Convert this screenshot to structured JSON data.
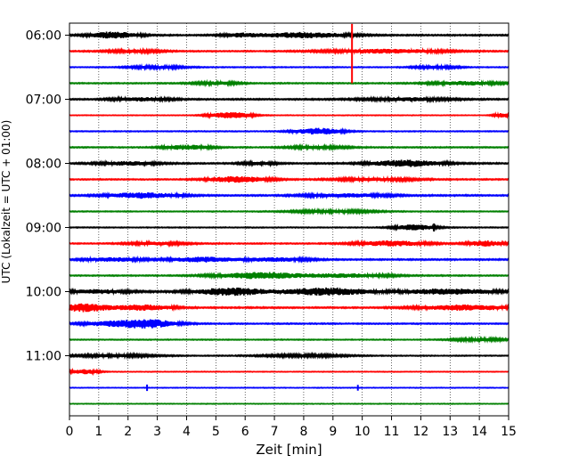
{
  "chart_data": {
    "type": "line",
    "title": "",
    "xlabel": "Zeit  [min]",
    "ylabel": "UTC (Lokalzeit = UTC + 01:00)",
    "xlim": [
      0,
      15
    ],
    "xticks": [
      0,
      1,
      2,
      3,
      4,
      5,
      6,
      7,
      8,
      9,
      10,
      11,
      12,
      13,
      14,
      15
    ],
    "ylim_traces": [
      -0.75,
      23.75
    ],
    "grid": "vertical dotted",
    "yticks": [
      {
        "label": "06:00",
        "trace": 0
      },
      {
        "label": "07:00",
        "trace": 4
      },
      {
        "label": "08:00",
        "trace": 8
      },
      {
        "label": "09:00",
        "trace": 12
      },
      {
        "label": "10:00",
        "trace": 16
      },
      {
        "label": "11:00",
        "trace": 20
      }
    ],
    "color_cycle": [
      "#000000",
      "#ff0000",
      "#0000ff",
      "#008000"
    ],
    "traces": [
      {
        "start": "06:00",
        "color": "#000000",
        "level": 0.6,
        "bursts": [
          [
            1.5,
            0.8,
            3.5
          ],
          [
            8.0,
            1.5,
            3.0
          ],
          [
            5.8,
            0.6,
            1.8
          ]
        ]
      },
      {
        "start": "06:15",
        "color": "#ff0000",
        "level": 0.5,
        "bursts": [
          [
            10.8,
            2.0,
            2.2
          ],
          [
            2.2,
            1.0,
            1.5
          ]
        ]
      },
      {
        "start": "06:30",
        "color": "#0000ff",
        "level": 0.4,
        "bursts": [
          [
            3.0,
            1.0,
            1.5
          ],
          [
            12.5,
            0.8,
            1.5
          ]
        ]
      },
      {
        "start": "06:45",
        "color": "#008000",
        "level": 0.5,
        "bursts": [
          [
            13.5,
            1.2,
            2.0
          ],
          [
            5.0,
            0.8,
            1.5
          ]
        ]
      },
      {
        "start": "07:00",
        "color": "#000000",
        "level": 0.6,
        "bursts": [
          [
            2.5,
            1.0,
            1.8
          ],
          [
            11.5,
            1.5,
            1.8
          ]
        ]
      },
      {
        "start": "07:15",
        "color": "#ff0000",
        "level": 0.3,
        "bursts": [
          [
            5.5,
            0.7,
            3.5
          ],
          [
            14.8,
            0.3,
            2.5
          ]
        ]
      },
      {
        "start": "07:30",
        "color": "#0000ff",
        "level": 0.4,
        "bursts": [
          [
            8.5,
            0.8,
            3.5
          ]
        ]
      },
      {
        "start": "07:45",
        "color": "#008000",
        "level": 0.5,
        "bursts": [
          [
            4.0,
            0.8,
            2.5
          ],
          [
            8.5,
            1.0,
            1.5
          ]
        ]
      },
      {
        "start": "08:00",
        "color": "#000000",
        "level": 0.6,
        "bursts": [
          [
            2.0,
            1.0,
            2.0
          ],
          [
            11.5,
            1.2,
            3.5
          ],
          [
            6.5,
            0.6,
            1.5
          ]
        ]
      },
      {
        "start": "08:15",
        "color": "#ff0000",
        "level": 0.5,
        "bursts": [
          [
            5.8,
            1.0,
            3.5
          ],
          [
            10.5,
            1.5,
            1.5
          ]
        ]
      },
      {
        "start": "08:30",
        "color": "#0000ff",
        "level": 0.6,
        "bursts": [
          [
            2.5,
            1.2,
            3.0
          ],
          [
            9.5,
            1.5,
            1.8
          ]
        ]
      },
      {
        "start": "08:45",
        "color": "#008000",
        "level": 0.4,
        "bursts": [
          [
            9.0,
            1.5,
            1.5
          ]
        ]
      },
      {
        "start": "09:00",
        "color": "#000000",
        "level": 0.4,
        "bursts": [
          [
            11.8,
            0.7,
            3.0
          ]
        ]
      },
      {
        "start": "09:15",
        "color": "#ff0000",
        "level": 0.5,
        "bursts": [
          [
            11.0,
            1.2,
            2.8
          ],
          [
            14.2,
            0.6,
            3.0
          ],
          [
            3.0,
            1.0,
            1.5
          ]
        ]
      },
      {
        "start": "09:30",
        "color": "#0000ff",
        "level": 0.6,
        "bursts": [
          [
            4.5,
            1.0,
            2.8
          ],
          [
            1.5,
            1.0,
            2.0
          ],
          [
            7.0,
            1.2,
            2.0
          ]
        ]
      },
      {
        "start": "09:45",
        "color": "#008000",
        "level": 0.5,
        "bursts": [
          [
            6.5,
            1.5,
            3.5
          ],
          [
            9.5,
            1.5,
            2.0
          ]
        ]
      },
      {
        "start": "10:00",
        "color": "#000000",
        "level": 0.7,
        "bursts": [
          [
            5.5,
            1.2,
            4.0
          ],
          [
            8.8,
            1.5,
            4.0
          ],
          [
            13.0,
            1.5,
            3.0
          ],
          [
            1.0,
            1.0,
            2.0
          ]
        ]
      },
      {
        "start": "10:15",
        "color": "#ff0000",
        "level": 0.6,
        "bursts": [
          [
            0.5,
            0.8,
            4.5
          ],
          [
            2.5,
            1.0,
            3.0
          ],
          [
            13.5,
            1.5,
            3.0
          ]
        ]
      },
      {
        "start": "10:30",
        "color": "#0000ff",
        "level": 0.5,
        "bursts": [
          [
            2.6,
            1.0,
            5.0
          ],
          [
            1.2,
            0.8,
            2.0
          ]
        ]
      },
      {
        "start": "10:45",
        "color": "#008000",
        "level": 0.4,
        "bursts": [
          [
            14.0,
            1.0,
            1.5
          ]
        ]
      },
      {
        "start": "11:00",
        "color": "#000000",
        "level": 0.4,
        "bursts": [
          [
            1.5,
            1.5,
            1.5
          ],
          [
            8.0,
            1.5,
            1.3
          ]
        ]
      },
      {
        "start": "11:15",
        "color": "#ff0000",
        "level": 0.3,
        "bursts": [
          [
            0.5,
            0.5,
            2.5
          ]
        ]
      },
      {
        "start": "11:30",
        "color": "#0000ff",
        "level": 0.3,
        "bursts": []
      },
      {
        "start": "11:45",
        "color": "#008000",
        "level": 0.3,
        "bursts": []
      }
    ],
    "spikes": [
      {
        "trace": 0,
        "x": 9.65,
        "color": "#ff0000",
        "from_trace": -0.7,
        "to_trace": 3.0
      },
      {
        "trace": 12,
        "x": 12.45,
        "color": "#000000",
        "from_trace": -0.25,
        "to_trace": 0.25
      },
      {
        "trace": 22,
        "x": 2.65,
        "color": "#0000ff",
        "from_trace": -0.2,
        "to_trace": 0.2
      },
      {
        "trace": 22,
        "x": 9.85,
        "color": "#0000ff",
        "from_trace": -0.18,
        "to_trace": 0.18
      }
    ]
  }
}
